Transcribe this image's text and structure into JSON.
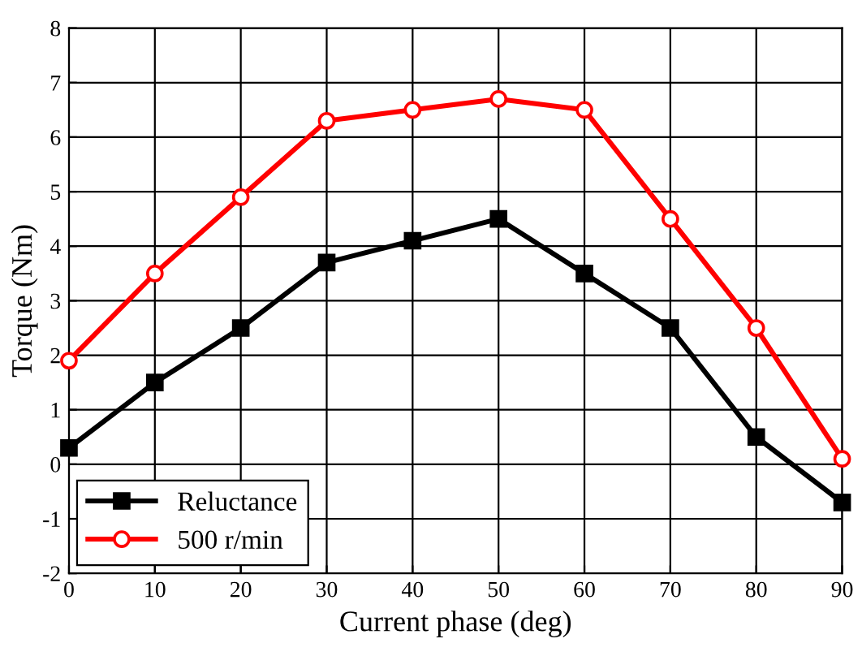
{
  "chart_data": {
    "type": "line",
    "xlabel": "Current phase (deg)",
    "ylabel": "Torque (Nm)",
    "x": [
      0,
      10,
      20,
      30,
      40,
      50,
      60,
      70,
      80,
      90
    ],
    "series": [
      {
        "name": "Reluctance",
        "color": "#000000",
        "marker": "square",
        "values": [
          0.3,
          1.5,
          2.5,
          3.7,
          4.1,
          4.5,
          3.5,
          2.5,
          0.5,
          -0.7
        ]
      },
      {
        "name": "500 r/min",
        "color": "#ff0000",
        "marker": "circle",
        "values": [
          1.9,
          3.5,
          4.9,
          6.3,
          6.5,
          6.7,
          6.5,
          4.5,
          2.5,
          0.1
        ]
      }
    ],
    "xlim": [
      0,
      90
    ],
    "xticks": [
      0,
      10,
      20,
      30,
      40,
      50,
      60,
      70,
      80,
      90
    ],
    "ylim": [
      -2,
      8
    ],
    "yticks": [
      -2,
      -1,
      0,
      1,
      2,
      3,
      4,
      5,
      6,
      7,
      8
    ],
    "grid": true,
    "legend": "bottom left",
    "line_style": "solid"
  }
}
